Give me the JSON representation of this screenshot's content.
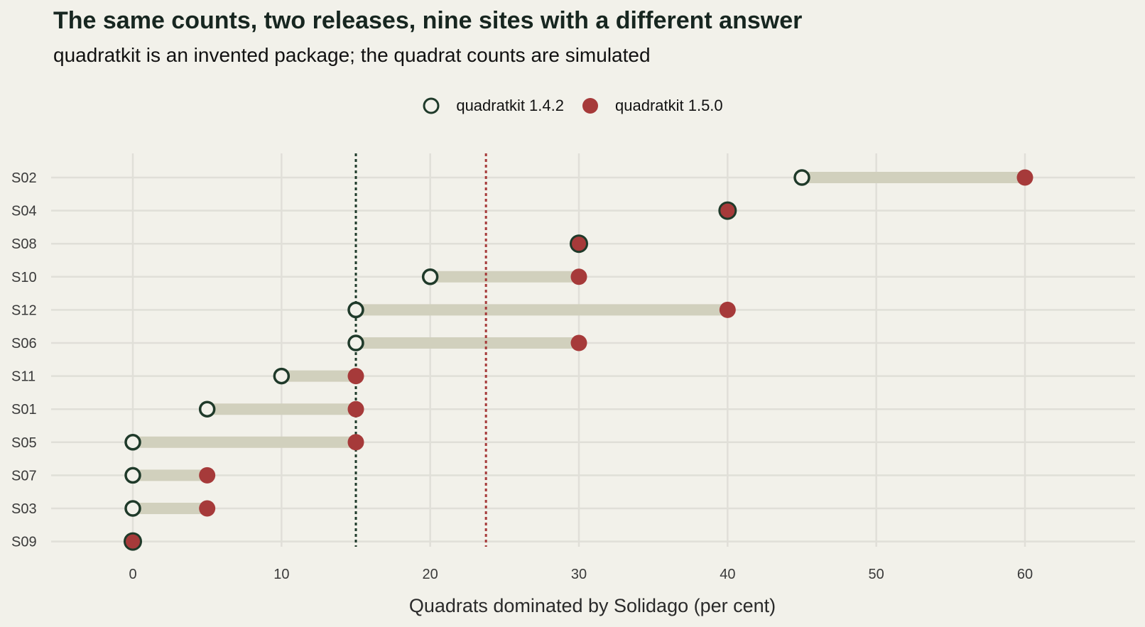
{
  "chart_data": {
    "type": "dumbbell",
    "title": "The same counts, two releases, nine sites with a different answer",
    "subtitle": "quadratkit is an invented package; the quadrat counts are simulated",
    "xlabel": "Quadrats dominated by Solidago (per cent)",
    "ylabel": "",
    "xlim": [
      -5,
      67
    ],
    "x_ticks": [
      0,
      10,
      20,
      30,
      40,
      50,
      60
    ],
    "grid": true,
    "legend_position": "top",
    "categories": [
      "S02",
      "S04",
      "S08",
      "S10",
      "S12",
      "S06",
      "S11",
      "S01",
      "S05",
      "S07",
      "S03",
      "S09"
    ],
    "series": [
      {
        "name": "quadratkit 1.4.2",
        "style": "open-circle",
        "color": "#1f3a2a",
        "values": [
          45,
          40,
          30,
          20,
          15,
          15,
          10,
          5,
          0,
          0,
          0,
          0
        ]
      },
      {
        "name": "quadratkit 1.5.0",
        "style": "filled-circle",
        "color": "#a63a3a",
        "values": [
          60,
          40,
          30,
          30,
          40,
          30,
          15,
          15,
          15,
          5,
          5,
          0
        ]
      }
    ],
    "reference_lines": [
      {
        "series": "quadratkit 1.4.2",
        "x": 15,
        "color": "#1f3a2a",
        "style": "dotted"
      },
      {
        "series": "quadratkit 1.5.0",
        "x": 23.75,
        "color": "#a63a3a",
        "style": "dotted"
      }
    ],
    "colors": {
      "background": "#f2f1ea",
      "grid": "#e0dfd8",
      "connector": "#d1d0bd",
      "old": "#1f3a2a",
      "new": "#a63a3a",
      "open_fill": "#f2f1ea"
    }
  }
}
